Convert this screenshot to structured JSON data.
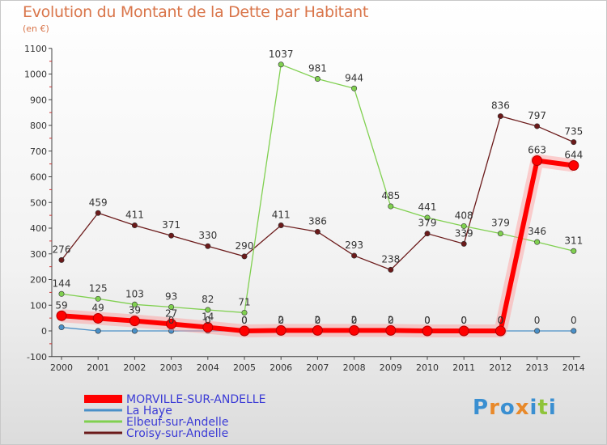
{
  "title": "Evolution du Montant de la Dette par Habitant",
  "subtitle": "(en €)",
  "logo": {
    "letters": [
      "P",
      "r",
      "o",
      "x",
      "i",
      "t",
      "i"
    ],
    "colors": [
      "#3a8fd1",
      "#e8892a",
      "#3a8fd1",
      "#e8892a",
      "#3a8fd1",
      "#8fc43a",
      "#3a8fd1"
    ]
  },
  "chart_data": {
    "type": "line",
    "title": "Evolution du Montant de la Dette par Habitant",
    "ylabel": "(en €)",
    "xlabel": "",
    "categories": [
      "2000",
      "2001",
      "2002",
      "2003",
      "2004",
      "2005",
      "2006",
      "2007",
      "2008",
      "2009",
      "2010",
      "2011",
      "2012",
      "2013",
      "2014"
    ],
    "ylim": [
      -100,
      1100
    ],
    "yticks": [
      -100,
      0,
      100,
      200,
      300,
      400,
      500,
      600,
      700,
      800,
      900,
      1000,
      1100
    ],
    "grid": false,
    "legend_position": "bottom-left",
    "series": [
      {
        "name": "MORVILLE-SUR-ANDELLE",
        "color": "#ff0000",
        "emphasis": true,
        "values": [
          59,
          49,
          39,
          27,
          14,
          0,
          2,
          2,
          2,
          2,
          0,
          0,
          0,
          663,
          644
        ],
        "labels": [
          "59",
          "49",
          "39",
          "27",
          "14",
          "0",
          "2",
          "2",
          "2",
          "2",
          "0",
          "0",
          "0",
          "663",
          "644"
        ]
      },
      {
        "name": "La Haye",
        "color": "#4a90c8",
        "values": [
          14,
          0,
          0,
          0,
          0,
          0,
          0,
          0,
          0,
          0,
          0,
          0,
          0,
          0,
          0
        ],
        "labels": [
          "",
          "",
          "",
          "0",
          "0",
          "0",
          "0",
          "0",
          "0",
          "0",
          "0",
          "0",
          "0",
          "0",
          "0"
        ]
      },
      {
        "name": "Elbeuf-sur-Andelle",
        "color": "#80d050",
        "values": [
          144,
          125,
          103,
          93,
          82,
          71,
          1037,
          981,
          944,
          485,
          441,
          408,
          379,
          346,
          311
        ],
        "labels": [
          "144",
          "125",
          "103",
          "93",
          "82",
          "71",
          "1037",
          "981",
          "944",
          "485",
          "441",
          "408",
          "379",
          "346",
          "311"
        ]
      },
      {
        "name": "Croisy-sur-Andelle",
        "color": "#6b1a1a",
        "values": [
          276,
          459,
          411,
          371,
          330,
          290,
          411,
          386,
          293,
          238,
          379,
          339,
          836,
          797,
          735
        ],
        "labels": [
          "276",
          "459",
          "411",
          "371",
          "330",
          "290",
          "411",
          "386",
          "293",
          "238",
          "379",
          "339",
          "836",
          "797",
          "735"
        ]
      }
    ]
  }
}
